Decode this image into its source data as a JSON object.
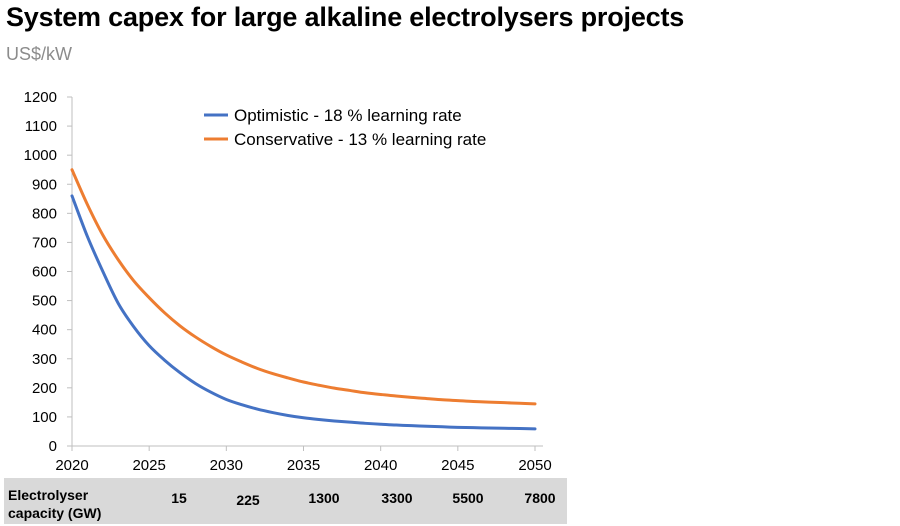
{
  "header": {
    "title": "System capex for large alkaline electrolysers projects",
    "unit": "US$/kW"
  },
  "capacity_row": {
    "label_line1": "Electrolyser",
    "label_line2": "capacity (GW)",
    "values": [
      "15",
      "225",
      "1300",
      "3300",
      "5500",
      "7800"
    ]
  },
  "chart_data": {
    "type": "line",
    "title": "System capex for large alkaline electrolysers projects",
    "ylabel": "US$/kW",
    "xlabel": "",
    "x": [
      2020,
      2021,
      2022,
      2023,
      2024,
      2025,
      2026,
      2027,
      2028,
      2029,
      2030,
      2031,
      2032,
      2033,
      2034,
      2035,
      2036,
      2037,
      2038,
      2039,
      2040,
      2041,
      2042,
      2043,
      2044,
      2045,
      2046,
      2047,
      2048,
      2049,
      2050
    ],
    "x_ticks": [
      2020,
      2025,
      2030,
      2035,
      2040,
      2045,
      2050
    ],
    "y_ticks": [
      0,
      100,
      200,
      300,
      400,
      500,
      600,
      700,
      800,
      900,
      1000,
      1100,
      1200
    ],
    "xlim": [
      2020,
      2050
    ],
    "ylim": [
      0,
      1200
    ],
    "grid": false,
    "legend_position": "top-center",
    "series": [
      {
        "name": "Optimistic - 18 % learning rate",
        "color": "#4472c4",
        "values": [
          860,
          720,
          600,
          490,
          410,
          345,
          295,
          252,
          215,
          185,
          160,
          142,
          127,
          115,
          105,
          97,
          91,
          86,
          82,
          78,
          75,
          72,
          70,
          68,
          66,
          64,
          63,
          62,
          61,
          60,
          59
        ]
      },
      {
        "name": "Conservative - 13 % learning rate",
        "color": "#ed7d31",
        "values": [
          950,
          830,
          725,
          640,
          568,
          510,
          458,
          413,
          375,
          342,
          313,
          289,
          267,
          249,
          234,
          220,
          209,
          199,
          191,
          183,
          177,
          172,
          167,
          163,
          159,
          156,
          153,
          151,
          149,
          147,
          145
        ]
      }
    ]
  }
}
